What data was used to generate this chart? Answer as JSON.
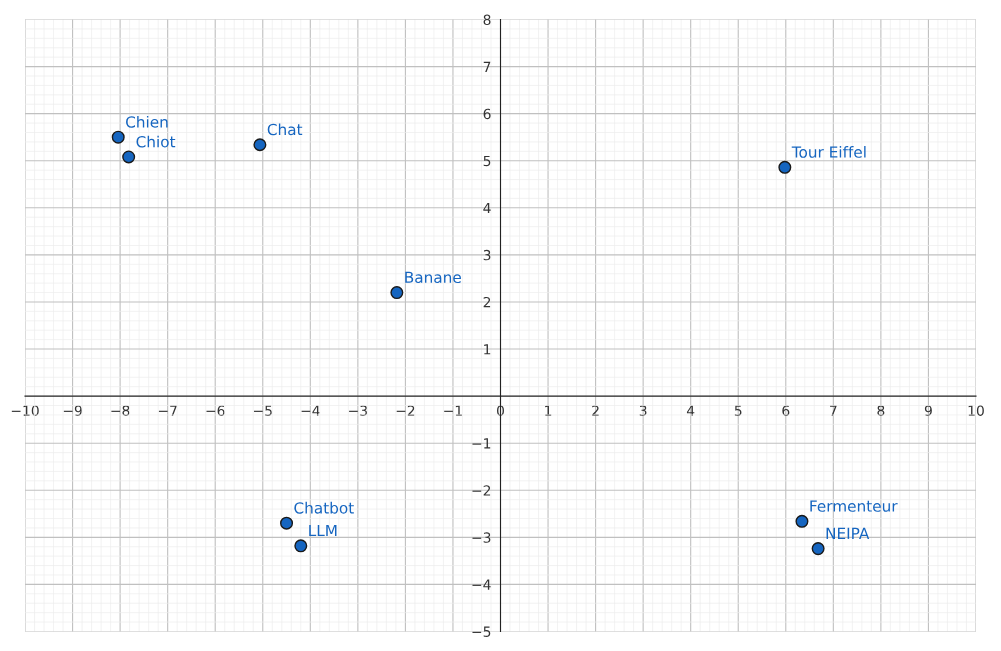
{
  "chart_data": {
    "type": "scatter",
    "marker": "circle",
    "grid": true,
    "series": [
      {
        "color": "#1565c0",
        "x": [
          -8.04,
          -7.82,
          -5.06,
          -2.18,
          5.98,
          -4.5,
          -4.2,
          6.34,
          6.68
        ],
        "values": [
          5.5,
          5.08,
          5.34,
          2.2,
          4.86,
          -2.7,
          -3.18,
          -2.66,
          -3.24
        ]
      }
    ],
    "annotations": [
      {
        "text": "Chien",
        "x": -8.04,
        "y": 5.5
      },
      {
        "text": "Chiot",
        "x": -7.82,
        "y": 5.08
      },
      {
        "text": "Chat",
        "x": -5.06,
        "y": 5.34
      },
      {
        "text": "Banane",
        "x": -2.18,
        "y": 2.2
      },
      {
        "text": "Tour Eiffel",
        "x": 5.98,
        "y": 4.86
      },
      {
        "text": "Chatbot",
        "x": -4.5,
        "y": -2.7
      },
      {
        "text": "LLM",
        "x": -4.2,
        "y": -3.18
      },
      {
        "text": "Fermenteur",
        "x": 6.34,
        "y": -2.66
      },
      {
        "text": "NEIPA",
        "x": 6.68,
        "y": -3.24
      }
    ],
    "xlim": [
      -10,
      10
    ],
    "ylim": [
      -5,
      8
    ],
    "xticks": [
      {
        "value": -10,
        "label": "−10"
      },
      {
        "value": -9,
        "label": "−9"
      },
      {
        "value": -8,
        "label": "−8"
      },
      {
        "value": -7,
        "label": "−7"
      },
      {
        "value": -6,
        "label": "−6"
      },
      {
        "value": -5,
        "label": "−5"
      },
      {
        "value": -4,
        "label": "−4"
      },
      {
        "value": -3,
        "label": "−3"
      },
      {
        "value": -2,
        "label": "−2"
      },
      {
        "value": -1,
        "label": "−1"
      },
      0,
      1,
      2,
      3,
      4,
      5,
      6,
      7,
      8,
      9,
      10
    ],
    "yticks": [
      {
        "value": -5,
        "label": "−5"
      },
      {
        "value": -4,
        "label": "−4"
      },
      {
        "value": -3,
        "label": "−3"
      },
      {
        "value": -2,
        "label": "−2"
      },
      {
        "value": -1,
        "label": "−1"
      },
      1,
      2,
      3,
      4,
      5,
      6,
      7,
      8
    ]
  }
}
